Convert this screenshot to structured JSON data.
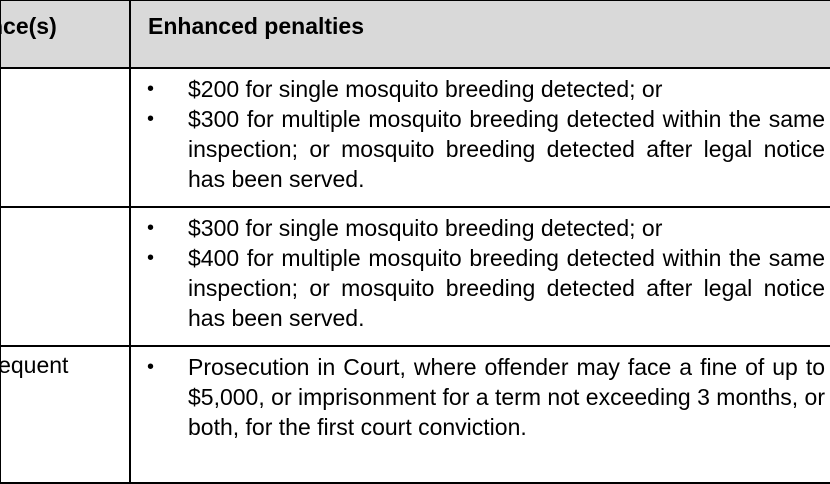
{
  "table": {
    "headers": {
      "offence": "nce(s)",
      "penalties": "Enhanced penalties"
    },
    "rows": [
      {
        "offence": "",
        "penalties": [
          "$200 for single mosquito breeding detected; or",
          "$300 for multiple mosquito breeding detected within the same inspection; or mosquito breeding detected after legal notice has been served."
        ]
      },
      {
        "offence": "",
        "penalties": [
          "$300 for single mosquito breeding detected; or",
          "$400 for multiple mosquito breeding detected within the same inspection; or mosquito breeding detected after legal notice has been served."
        ]
      },
      {
        "offence": "ubsequent",
        "penalties": [
          "Prosecution in Court, where offender may face a fine of up to $5,000, or imprisonment for a term not exceeding 3 months, or both, for the first court conviction."
        ]
      }
    ],
    "bullet_glyph": "•",
    "header_bg": "#d9d9d9"
  }
}
